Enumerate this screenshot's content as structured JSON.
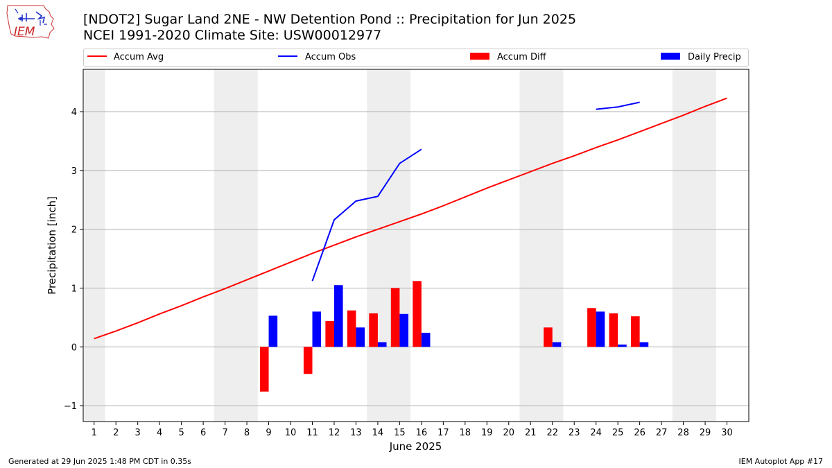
{
  "header": {
    "title_line1": "[NDOT2] Sugar Land 2NE - NW Detention Pond :: Precipitation for Jun 2025",
    "title_line2": "NCEI 1991-2020 Climate Site: USW00012977",
    "logo_text": "IEM"
  },
  "footer": {
    "generated": "Generated at 29 Jun 2025 1:48 PM CDT in 0.35s",
    "app": "IEM Autoplot App #17"
  },
  "colors": {
    "avg": "#ff0000",
    "obs": "#0000ff",
    "diff": "#ff0000",
    "daily": "#0000ff",
    "weekend_shade": "#eeeeee",
    "grid": "#b0b0b0"
  },
  "chart_data": {
    "type": "bar",
    "xlabel": "June 2025",
    "ylabel": "Precipitation [inch]",
    "xlim": [
      0.5,
      31.0
    ],
    "ylim": [
      -1.27,
      4.72
    ],
    "x_ticks": [
      1,
      2,
      3,
      4,
      5,
      6,
      7,
      8,
      9,
      10,
      11,
      12,
      13,
      14,
      15,
      16,
      17,
      18,
      19,
      20,
      21,
      22,
      23,
      24,
      25,
      26,
      27,
      28,
      29,
      30
    ],
    "y_ticks": [
      -1,
      0,
      1,
      2,
      3,
      4
    ],
    "y_tick_labels": [
      "−1",
      "0",
      "1",
      "2",
      "3",
      "4"
    ],
    "grid": "horizontal",
    "legend_position": "top",
    "shaded_days": [
      [
        0.5,
        1.5
      ],
      [
        6.5,
        8.5
      ],
      [
        13.5,
        15.5
      ],
      [
        20.5,
        22.5
      ],
      [
        27.5,
        29.5
      ]
    ],
    "legend": [
      {
        "label": "Accum Avg",
        "kind": "line",
        "color": "#ff0000"
      },
      {
        "label": "Accum Obs",
        "kind": "line",
        "color": "#0000ff"
      },
      {
        "label": "Accum Diff",
        "kind": "bar",
        "color": "#ff0000"
      },
      {
        "label": "Daily Precip",
        "kind": "bar",
        "color": "#0000ff"
      }
    ],
    "series": [
      {
        "name": "Accum Avg",
        "type": "line",
        "x": [
          1,
          2,
          3,
          4,
          5,
          6,
          7,
          8,
          9,
          10,
          11,
          12,
          13,
          14,
          15,
          16,
          17,
          18,
          19,
          20,
          21,
          22,
          23,
          24,
          25,
          26,
          27,
          28,
          29,
          30
        ],
        "values": [
          0.14,
          0.27,
          0.41,
          0.56,
          0.7,
          0.85,
          0.99,
          1.14,
          1.29,
          1.44,
          1.59,
          1.73,
          1.87,
          2.0,
          2.13,
          2.26,
          2.4,
          2.55,
          2.7,
          2.84,
          2.98,
          3.12,
          3.25,
          3.39,
          3.52,
          3.66,
          3.8,
          3.94,
          4.09,
          4.23
        ]
      },
      {
        "name": "Accum Obs",
        "type": "line",
        "segments": [
          {
            "x": [
              11,
              12,
              13,
              14,
              15,
              16
            ],
            "values": [
              1.12,
              2.16,
              2.48,
              2.56,
              3.12,
              3.36
            ]
          },
          {
            "x": [
              24,
              25,
              26
            ],
            "values": [
              4.04,
              4.08,
              4.16
            ]
          }
        ]
      },
      {
        "name": "Accum Diff",
        "type": "bar",
        "x": [
          9,
          11,
          12,
          13,
          14,
          15,
          16,
          22,
          24,
          25,
          26
        ],
        "values": [
          -0.76,
          -0.46,
          0.44,
          0.62,
          0.57,
          1.0,
          1.12,
          0.33,
          0.66,
          0.57,
          0.52
        ]
      },
      {
        "name": "Daily Precip",
        "type": "bar",
        "x": [
          9,
          11,
          12,
          13,
          14,
          15,
          16,
          22,
          24,
          25,
          26
        ],
        "values": [
          0.53,
          0.6,
          1.05,
          0.33,
          0.08,
          0.56,
          0.24,
          0.08,
          0.6,
          0.04,
          0.08
        ]
      }
    ]
  }
}
